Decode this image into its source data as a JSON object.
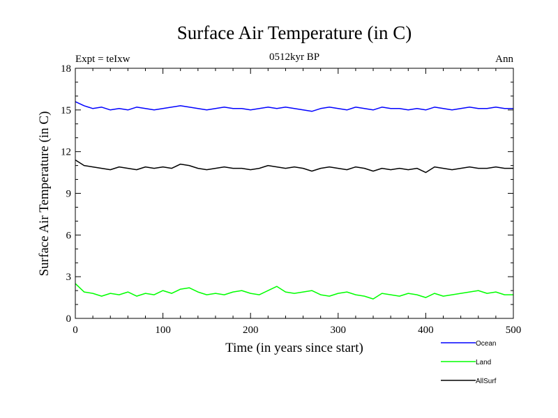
{
  "chart_data": {
    "type": "line",
    "title": "Surface Air Temperature (in C)",
    "subtitle": "0512kyr BP",
    "top_left_label": "Expt = teIxw",
    "top_right_label": "Ann",
    "xlabel": "Time (in years since start)",
    "ylabel": "Surface Air Temperature (in C)",
    "xlim": [
      0,
      500
    ],
    "ylim": [
      0,
      18
    ],
    "x_ticks": [
      0,
      100,
      200,
      300,
      400,
      500
    ],
    "x_tick_labels": [
      "0",
      "100",
      "200",
      "300",
      "400",
      "500"
    ],
    "y_ticks": [
      0,
      3,
      6,
      9,
      12,
      15,
      18
    ],
    "y_tick_labels": [
      "0",
      "3",
      "6",
      "9",
      "12",
      "15",
      "18"
    ],
    "grid": false,
    "legend_position": "bottom-right, below plot",
    "series": [
      {
        "name": "Ocean",
        "color": "#0000ff",
        "x": [
          0,
          10,
          20,
          30,
          40,
          50,
          60,
          70,
          80,
          90,
          100,
          110,
          120,
          130,
          140,
          150,
          160,
          170,
          180,
          190,
          200,
          210,
          220,
          230,
          240,
          250,
          260,
          270,
          280,
          290,
          300,
          310,
          320,
          330,
          340,
          350,
          360,
          370,
          380,
          390,
          400,
          410,
          420,
          430,
          440,
          450,
          460,
          470,
          480,
          490,
          500
        ],
        "values": [
          15.6,
          15.3,
          15.1,
          15.2,
          15.0,
          15.1,
          15.0,
          15.2,
          15.1,
          15.0,
          15.1,
          15.2,
          15.3,
          15.2,
          15.1,
          15.0,
          15.1,
          15.2,
          15.1,
          15.1,
          15.0,
          15.1,
          15.2,
          15.1,
          15.2,
          15.1,
          15.0,
          14.9,
          15.1,
          15.2,
          15.1,
          15.0,
          15.2,
          15.1,
          15.0,
          15.2,
          15.1,
          15.1,
          15.0,
          15.1,
          15.0,
          15.2,
          15.1,
          15.0,
          15.1,
          15.2,
          15.1,
          15.1,
          15.2,
          15.1,
          15.1
        ]
      },
      {
        "name": "Land",
        "color": "#00ff00",
        "x": [
          0,
          10,
          20,
          30,
          40,
          50,
          60,
          70,
          80,
          90,
          100,
          110,
          120,
          130,
          140,
          150,
          160,
          170,
          180,
          190,
          200,
          210,
          220,
          230,
          240,
          250,
          260,
          270,
          280,
          290,
          300,
          310,
          320,
          330,
          340,
          350,
          360,
          370,
          380,
          390,
          400,
          410,
          420,
          430,
          440,
          450,
          460,
          470,
          480,
          490,
          500
        ],
        "values": [
          2.5,
          1.9,
          1.8,
          1.6,
          1.8,
          1.7,
          1.9,
          1.6,
          1.8,
          1.7,
          2.0,
          1.8,
          2.1,
          2.2,
          1.9,
          1.7,
          1.8,
          1.7,
          1.9,
          2.0,
          1.8,
          1.7,
          2.0,
          2.3,
          1.9,
          1.8,
          1.9,
          2.0,
          1.7,
          1.6,
          1.8,
          1.9,
          1.7,
          1.6,
          1.4,
          1.8,
          1.7,
          1.6,
          1.8,
          1.7,
          1.5,
          1.8,
          1.6,
          1.7,
          1.8,
          1.9,
          2.0,
          1.8,
          1.9,
          1.7,
          1.7
        ]
      },
      {
        "name": "AllSurf",
        "color": "#000000",
        "x": [
          0,
          10,
          20,
          30,
          40,
          50,
          60,
          70,
          80,
          90,
          100,
          110,
          120,
          130,
          140,
          150,
          160,
          170,
          180,
          190,
          200,
          210,
          220,
          230,
          240,
          250,
          260,
          270,
          280,
          290,
          300,
          310,
          320,
          330,
          340,
          350,
          360,
          370,
          380,
          390,
          400,
          410,
          420,
          430,
          440,
          450,
          460,
          470,
          480,
          490,
          500
        ],
        "values": [
          11.4,
          11.0,
          10.9,
          10.8,
          10.7,
          10.9,
          10.8,
          10.7,
          10.9,
          10.8,
          10.9,
          10.8,
          11.1,
          11.0,
          10.8,
          10.7,
          10.8,
          10.9,
          10.8,
          10.8,
          10.7,
          10.8,
          11.0,
          10.9,
          10.8,
          10.9,
          10.8,
          10.6,
          10.8,
          10.9,
          10.8,
          10.7,
          10.9,
          10.8,
          10.6,
          10.8,
          10.7,
          10.8,
          10.7,
          10.8,
          10.5,
          10.9,
          10.8,
          10.7,
          10.8,
          10.9,
          10.8,
          10.8,
          10.9,
          10.8,
          10.8
        ]
      }
    ]
  }
}
